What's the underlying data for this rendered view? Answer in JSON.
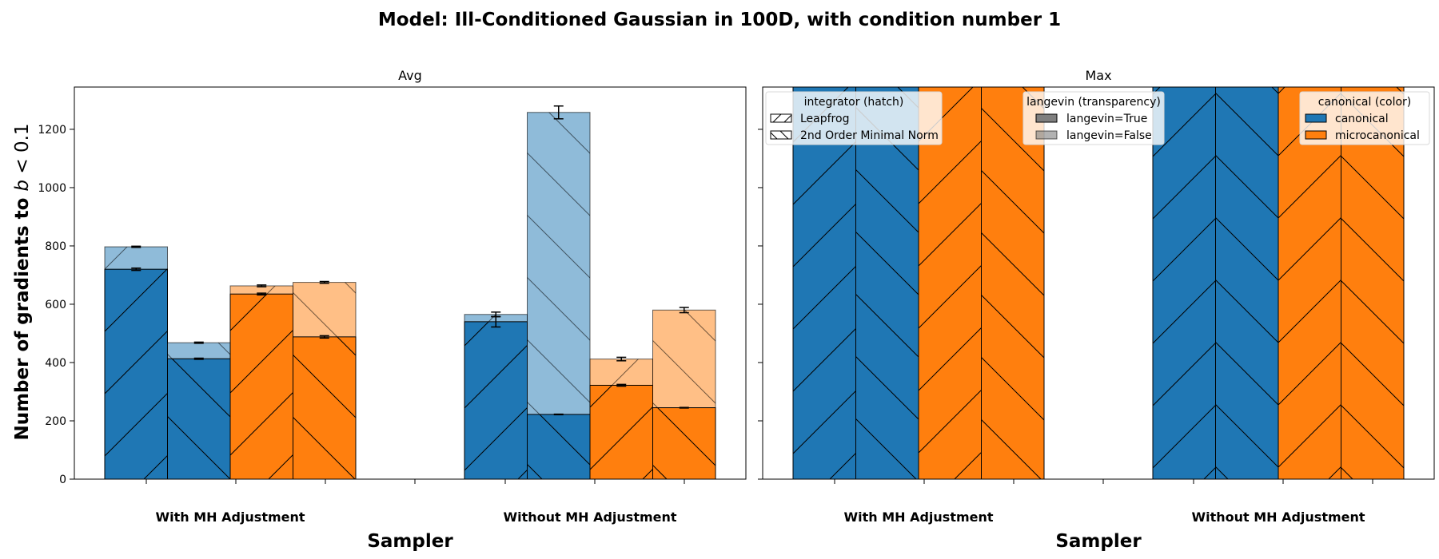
{
  "figure_title": "Model: Ill-Conditioned Gaussian in 100D, with condition number 1",
  "ylabel_prefix": "Number of gradients to ",
  "ylabel_b": "b",
  "ylabel_suffix": " < 0.1",
  "colors": {
    "canonical": "#1f77b4",
    "microcanonical": "#ff7f0e"
  },
  "legends": {
    "integrator": {
      "title": "integrator (hatch)",
      "items": [
        "Leapfrog",
        "2nd Order Minimal Norm"
      ]
    },
    "langevin": {
      "title": "langevin (transparency)",
      "items": [
        "langevin=True",
        "langevin=False"
      ]
    },
    "canonical": {
      "title": "canonical (color)",
      "items": [
        "canonical",
        "microcanonical"
      ]
    }
  },
  "chart_data": [
    {
      "type": "bar",
      "title": "Avg",
      "xlabel": "Sampler",
      "ylabel": "Number of gradients to b < 0.1",
      "ylim": [
        0,
        1345
      ],
      "yticks": [
        0,
        200,
        400,
        600,
        800,
        1000,
        1200
      ],
      "categories": [
        "With MH Adjustment",
        "Without MH Adjustment"
      ],
      "series": [
        {
          "canonical": "canonical",
          "integrator": "Leapfrog",
          "langevin_true": [
            720,
            540
          ],
          "langevin_true_err": [
            4,
            18
          ],
          "langevin_false": [
            797,
            565
          ],
          "langevin_false_err": [
            2,
            8
          ]
        },
        {
          "canonical": "canonical",
          "integrator": "2nd Order Minimal Norm",
          "langevin_true": [
            413,
            222
          ],
          "langevin_true_err": [
            2,
            1
          ],
          "langevin_false": [
            468,
            1258
          ],
          "langevin_false_err": [
            2,
            22
          ]
        },
        {
          "canonical": "microcanonical",
          "integrator": "Leapfrog",
          "langevin_true": [
            635,
            322
          ],
          "langevin_true_err": [
            3,
            3
          ],
          "langevin_false": [
            663,
            412
          ],
          "langevin_false_err": [
            3,
            6
          ]
        },
        {
          "canonical": "microcanonical",
          "integrator": "2nd Order Minimal Norm",
          "langevin_true": [
            488,
            245
          ],
          "langevin_true_err": [
            4,
            1
          ],
          "langevin_false": [
            675,
            580
          ],
          "langevin_false_err": [
            3,
            9
          ]
        }
      ],
      "grid": false
    },
    {
      "type": "bar",
      "title": "Max",
      "xlabel": "Sampler",
      "ylim": [
        0,
        1345
      ],
      "categories": [
        "With MH Adjustment",
        "Without MH Adjustment"
      ],
      "note": "all bars extend beyond the top of the axis",
      "series": [
        {
          "canonical": "canonical",
          "integrator": "Leapfrog",
          "values": [
            1400,
            1400
          ]
        },
        {
          "canonical": "canonical",
          "integrator": "2nd Order Minimal Norm",
          "values": [
            1400,
            1400
          ]
        },
        {
          "canonical": "microcanonical",
          "integrator": "Leapfrog",
          "values": [
            1400,
            1400
          ]
        },
        {
          "canonical": "microcanonical",
          "integrator": "2nd Order Minimal Norm",
          "values": [
            1400,
            1400
          ]
        }
      ],
      "grid": false
    }
  ]
}
